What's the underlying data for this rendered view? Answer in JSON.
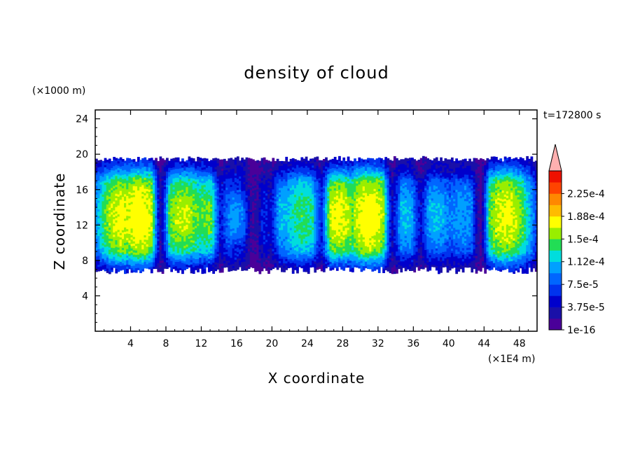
{
  "chart_data": {
    "type": "heatmap",
    "title": "density of cloud",
    "xlabel": "X coordinate",
    "ylabel": "Z coordinate",
    "x_unit": "(×1E4 m)",
    "y_unit": "(×1000 m)",
    "time_label": "t=172800 s",
    "xlim": [
      0,
      50
    ],
    "ylim": [
      0,
      25
    ],
    "x_ticks": [
      4,
      8,
      12,
      16,
      20,
      24,
      28,
      32,
      36,
      40,
      44,
      48
    ],
    "y_ticks": [
      4,
      8,
      12,
      16,
      20,
      24
    ],
    "x_tick_labels": [
      "4",
      "8",
      "12",
      "16",
      "20",
      "24",
      "28",
      "32",
      "36",
      "40",
      "44",
      "48"
    ],
    "y_tick_labels": [
      "4",
      "8",
      "12",
      "16",
      "20",
      "24"
    ],
    "colorbar": {
      "levels": [
        {
          "value": 0.0,
          "color": "#4a0099"
        },
        {
          "value": 1.875e-05,
          "color": "#1a10a8"
        },
        {
          "value": 3.75e-05,
          "color": "#0000cc"
        },
        {
          "value": 5.625e-05,
          "color": "#0033ee"
        },
        {
          "value": 7.5e-05,
          "color": "#0066ff"
        },
        {
          "value": 9.375e-05,
          "color": "#00a0ff"
        },
        {
          "value": 0.0001125,
          "color": "#00dddd"
        },
        {
          "value": 0.00013125,
          "color": "#22dd55"
        },
        {
          "value": 0.00015,
          "color": "#99ee00"
        },
        {
          "value": 0.00016875,
          "color": "#ffff00"
        },
        {
          "value": 0.0001875,
          "color": "#ffbb00"
        },
        {
          "value": 0.00020625,
          "color": "#ff8800"
        },
        {
          "value": 0.000225,
          "color": "#ff4400"
        },
        {
          "value": 0.00024375,
          "color": "#ee1100"
        }
      ],
      "over_color": "#ffb0b0",
      "tick_labels": [
        "1e-16",
        "3.75e-5",
        "7.5e-5",
        "1.12e-4",
        "1.5e-4",
        "1.88e-4",
        "2.25e-4"
      ]
    },
    "cloud_layer": {
      "base_z": 6.5,
      "top_z": 19.5,
      "dense_core_z": [
        9,
        17
      ]
    },
    "columns": [
      {
        "x": 3.0,
        "top": 19.0,
        "base": 7.0,
        "intensity": 0.95
      },
      {
        "x": 5.0,
        "top": 19.6,
        "base": 6.8,
        "intensity": 1.0
      },
      {
        "x": 10.0,
        "top": 18.0,
        "base": 7.5,
        "intensity": 0.9
      },
      {
        "x": 12.5,
        "top": 17.5,
        "base": 7.5,
        "intensity": 0.8
      },
      {
        "x": 15.5,
        "top": 15.0,
        "base": 9.0,
        "intensity": 0.55
      },
      {
        "x": 21.5,
        "top": 18.0,
        "base": 8.5,
        "intensity": 0.6
      },
      {
        "x": 23.5,
        "top": 18.5,
        "base": 8.0,
        "intensity": 0.75
      },
      {
        "x": 27.5,
        "top": 18.0,
        "base": 7.0,
        "intensity": 0.95
      },
      {
        "x": 31.0,
        "top": 19.4,
        "base": 7.0,
        "intensity": 1.0
      },
      {
        "x": 35.0,
        "top": 17.0,
        "base": 7.5,
        "intensity": 0.6
      },
      {
        "x": 38.5,
        "top": 17.0,
        "base": 8.0,
        "intensity": 0.6
      },
      {
        "x": 41.5,
        "top": 18.0,
        "base": 8.5,
        "intensity": 0.55
      },
      {
        "x": 46.5,
        "top": 19.2,
        "base": 6.8,
        "intensity": 0.95
      }
    ],
    "gaps": [
      {
        "x": 7.4,
        "depth": 0.8
      },
      {
        "x": 14.2,
        "depth": 0.6
      },
      {
        "x": 17.8,
        "depth": 0.7
      },
      {
        "x": 19.8,
        "depth": 0.5
      },
      {
        "x": 25.6,
        "depth": 0.6
      },
      {
        "x": 33.6,
        "depth": 0.7
      },
      {
        "x": 36.8,
        "depth": 0.5
      },
      {
        "x": 43.6,
        "depth": 0.9
      }
    ]
  }
}
